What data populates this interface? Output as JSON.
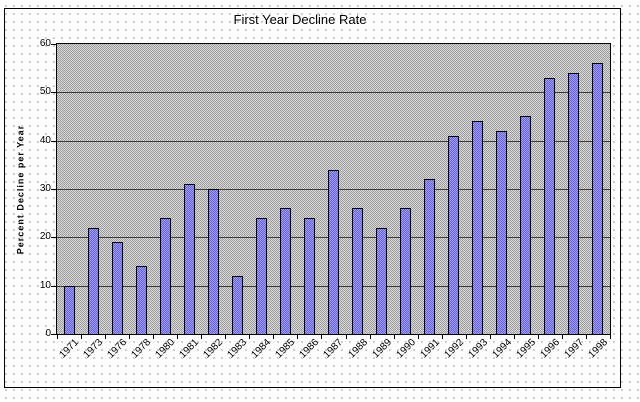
{
  "chart_data": {
    "type": "bar",
    "title": "First Year Decline Rate",
    "xlabel": "",
    "ylabel": "Percent Decline per Year",
    "categories": [
      "1971",
      "1973",
      "1976",
      "1978",
      "1980",
      "1981",
      "1982",
      "1983",
      "1984",
      "1985",
      "1986",
      "1987",
      "1988",
      "1989",
      "1990",
      "1991",
      "1992",
      "1993",
      "1994",
      "1995",
      "1996",
      "1997",
      "1998"
    ],
    "values": [
      10,
      22,
      19,
      14,
      24,
      31,
      30,
      12,
      24,
      26,
      24,
      34,
      26,
      22,
      26,
      32,
      41,
      44,
      42,
      45,
      53,
      54,
      56
    ],
    "ylim": [
      0,
      60
    ],
    "ytick_interval": 10,
    "ytick_labels": [
      "0",
      "10",
      "20",
      "30",
      "40",
      "50",
      "60"
    ],
    "grid": "horizontal",
    "legend_position": "none",
    "colors": {
      "bar_fill": "#8c8cec",
      "bar_border": "#000000",
      "plot_background": "#c6c6c6",
      "gridline": "#3c3c3c",
      "axis": "#000000",
      "canvas_background": "#ffffff",
      "canvas_dots": "#bdbdbd",
      "text": "#000000"
    }
  }
}
